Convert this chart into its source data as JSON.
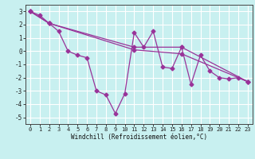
{
  "xlabel": "Windchill (Refroidissement éolien,°C)",
  "line_main_x": [
    0,
    1,
    2,
    3,
    4,
    5,
    6,
    7,
    8,
    9,
    10,
    11,
    12,
    13,
    14,
    15,
    16,
    17,
    18,
    19,
    20,
    21,
    22,
    23
  ],
  "line_main_y": [
    3.0,
    2.7,
    2.1,
    1.5,
    0.0,
    -0.3,
    -0.5,
    -3.0,
    -3.3,
    -4.7,
    -3.2,
    1.4,
    0.3,
    1.5,
    -1.2,
    -1.3,
    0.3,
    -2.5,
    -0.3,
    -1.5,
    -2.0,
    -2.1,
    -2.0,
    -2.3
  ],
  "line_a_x": [
    0,
    2,
    11,
    16,
    23
  ],
  "line_a_y": [
    3.0,
    2.1,
    0.3,
    0.3,
    -2.3
  ],
  "line_b_x": [
    0,
    2,
    11,
    16,
    23
  ],
  "line_b_y": [
    3.0,
    2.1,
    0.1,
    -0.2,
    -2.3
  ],
  "color": "#993399",
  "bg_color": "#c8f0f0",
  "grid_color": "#ffffff",
  "ylim": [
    -5.5,
    3.5
  ],
  "xlim": [
    -0.5,
    23.5
  ],
  "yticks": [
    -5,
    -4,
    -3,
    -2,
    -1,
    0,
    1,
    2,
    3
  ],
  "xticks": [
    0,
    1,
    2,
    3,
    4,
    5,
    6,
    7,
    8,
    9,
    10,
    11,
    12,
    13,
    14,
    15,
    16,
    17,
    18,
    19,
    20,
    21,
    22,
    23
  ],
  "tick_fontsize": 5.0,
  "xlabel_fontsize": 5.5,
  "linewidth": 0.9,
  "markersize": 2.5
}
